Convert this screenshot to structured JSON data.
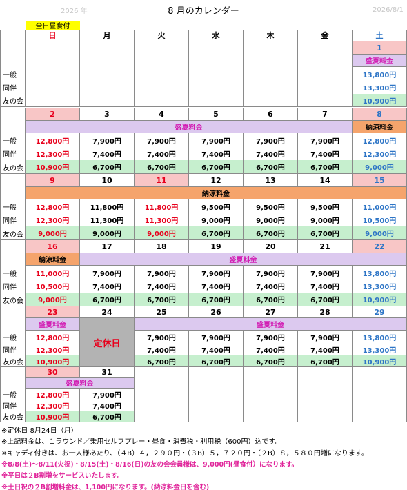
{
  "header": {
    "year": "2026 年",
    "title": "8 月のカレンダー",
    "date": "2026/8/1",
    "badge": "全日昼食付"
  },
  "weekdays": [
    "日",
    "月",
    "火",
    "水",
    "木",
    "金",
    "土"
  ],
  "row_labels": [
    "一般",
    "同伴",
    "友の会"
  ],
  "weeks": [
    {
      "days": [
        {
          "date": "1",
          "kind": "sat",
          "shade": true,
          "prices": [
            "13,800円",
            "13,300円",
            "10,900円"
          ]
        }
      ],
      "bands": [
        {
          "label": "盛夏料金",
          "span": 1,
          "kind": "summer"
        }
      ]
    },
    {
      "days": [
        {
          "date": "2",
          "kind": "sun",
          "shade": true,
          "prices": [
            "12,800円",
            "12,300円",
            "10,900円"
          ]
        },
        {
          "date": "3",
          "kind": "weekday",
          "shade": false,
          "prices": [
            "7,900円",
            "7,400円",
            "6,700円"
          ]
        },
        {
          "date": "4",
          "kind": "weekday",
          "shade": false,
          "prices": [
            "7,900円",
            "7,400円",
            "6,700円"
          ]
        },
        {
          "date": "5",
          "kind": "weekday",
          "shade": false,
          "prices": [
            "7,900円",
            "7,400円",
            "6,700円"
          ]
        },
        {
          "date": "6",
          "kind": "weekday",
          "shade": false,
          "prices": [
            "7,900円",
            "7,400円",
            "6,700円"
          ]
        },
        {
          "date": "7",
          "kind": "weekday",
          "shade": false,
          "prices": [
            "7,900円",
            "7,400円",
            "6,700円"
          ]
        },
        {
          "date": "8",
          "kind": "sat",
          "shade": true,
          "prices": [
            "12,800円",
            "12,300円",
            "9,000円"
          ]
        }
      ],
      "bands": [
        {
          "label": "盛夏料金",
          "span": 6,
          "kind": "summer"
        },
        {
          "label": "納涼料金",
          "span": 1,
          "kind": "cool"
        }
      ]
    },
    {
      "days": [
        {
          "date": "9",
          "kind": "sun",
          "shade": true,
          "prices": [
            "12,800円",
            "12,300円",
            "9,000円"
          ]
        },
        {
          "date": "10",
          "kind": "weekday",
          "shade": false,
          "prices": [
            "11,800円",
            "11,300円",
            "9,000円"
          ]
        },
        {
          "date": "11",
          "kind": "holiday",
          "shade": true,
          "prices": [
            "11,800円",
            "11,300円",
            "9,000円"
          ]
        },
        {
          "date": "12",
          "kind": "weekday",
          "shade": false,
          "prices": [
            "9,500円",
            "9,000円",
            "6,700円"
          ]
        },
        {
          "date": "13",
          "kind": "weekday",
          "shade": false,
          "prices": [
            "9,500円",
            "9,000円",
            "6,700円"
          ]
        },
        {
          "date": "14",
          "kind": "weekday",
          "shade": false,
          "prices": [
            "9,500円",
            "9,000円",
            "6,700円"
          ]
        },
        {
          "date": "15",
          "kind": "sat",
          "shade": true,
          "prices": [
            "11,000円",
            "10,500円",
            "9,000円"
          ]
        }
      ],
      "bands": [
        {
          "label": "納涼料金",
          "span": 7,
          "kind": "cool"
        }
      ]
    },
    {
      "days": [
        {
          "date": "16",
          "kind": "sun",
          "shade": true,
          "prices": [
            "11,000円",
            "10,500円",
            "9,000円"
          ]
        },
        {
          "date": "17",
          "kind": "weekday",
          "shade": false,
          "prices": [
            "7,900円",
            "7,400円",
            "6,700円"
          ]
        },
        {
          "date": "18",
          "kind": "weekday",
          "shade": false,
          "prices": [
            "7,900円",
            "7,400円",
            "6,700円"
          ]
        },
        {
          "date": "19",
          "kind": "weekday",
          "shade": false,
          "prices": [
            "7,900円",
            "7,400円",
            "6,700円"
          ]
        },
        {
          "date": "20",
          "kind": "weekday",
          "shade": false,
          "prices": [
            "7,900円",
            "7,400円",
            "6,700円"
          ]
        },
        {
          "date": "21",
          "kind": "weekday",
          "shade": false,
          "prices": [
            "7,900円",
            "7,400円",
            "6,700円"
          ]
        },
        {
          "date": "22",
          "kind": "sat",
          "shade": true,
          "prices": [
            "13,800円",
            "13,300円",
            "10,900円"
          ]
        }
      ],
      "bands": [
        {
          "label": "納涼料金",
          "span": 1,
          "kind": "cool"
        },
        {
          "label": "盛夏料金",
          "span": 6,
          "kind": "summer"
        }
      ]
    },
    {
      "days": [
        {
          "date": "23",
          "kind": "sun",
          "shade": true,
          "prices": [
            "12,800円",
            "12,300円",
            "10,900円"
          ]
        },
        {
          "date": "24",
          "kind": "weekday",
          "shade": false,
          "prices": []
        },
        {
          "date": "25",
          "kind": "weekday",
          "shade": false,
          "prices": [
            "7,900円",
            "7,400円",
            "6,700円"
          ]
        },
        {
          "date": "26",
          "kind": "weekday",
          "shade": false,
          "prices": [
            "7,900円",
            "7,400円",
            "6,700円"
          ]
        },
        {
          "date": "27",
          "kind": "weekday",
          "shade": false,
          "prices": [
            "7,900円",
            "7,400円",
            "6,700円"
          ]
        },
        {
          "date": "28",
          "kind": "weekday",
          "shade": false,
          "prices": [
            "7,900円",
            "7,400円",
            "6,700円"
          ]
        },
        {
          "date": "29",
          "kind": "sat",
          "shade": false,
          "prices": [
            "13,800円",
            "13,300円",
            "10,900円"
          ]
        }
      ],
      "bands": [
        {
          "label": "盛夏料金",
          "span": 1,
          "kind": "summer"
        },
        {
          "label": "定休日",
          "span": 1,
          "kind": "closed"
        },
        {
          "label": "盛夏料金",
          "span": 5,
          "kind": "summer"
        }
      ]
    },
    {
      "days": [
        {
          "date": "30",
          "kind": "sun",
          "shade": true,
          "prices": [
            "12,800円",
            "12,300円",
            "10,900円"
          ]
        },
        {
          "date": "31",
          "kind": "weekday",
          "shade": false,
          "prices": [
            "7,900円",
            "7,400円",
            "6,700円"
          ]
        }
      ],
      "bands": [
        {
          "label": "盛夏料金",
          "span": 2,
          "kind": "summer"
        }
      ]
    }
  ],
  "notes": [
    {
      "text": "※定休日 8月24日（月）",
      "emphasis": false
    },
    {
      "text": "※上記料金は、１ラウンド／乗用セルフプレー・昼食・消費税・利用税（600円）込です。",
      "emphasis": false
    },
    {
      "text": "※キャディ付きは、お一人様あたり、（４B）４，２９０円・（３B）５，７２０円・（２B）８，５８０円増になります。",
      "emphasis": false
    },
    {
      "text": "※8/8(土)～8/11(火祝)・8/15(土)・8/16(日)の友の会会員様は、9,000円(昼食付）になります。",
      "emphasis": true
    },
    {
      "text": "※平日は２B割増をサービスいたします。",
      "emphasis": true
    },
    {
      "text": "※土日祝の２B割増料金は、1,100円になります。(納涼料金日を含む)",
      "emphasis": true
    }
  ]
}
